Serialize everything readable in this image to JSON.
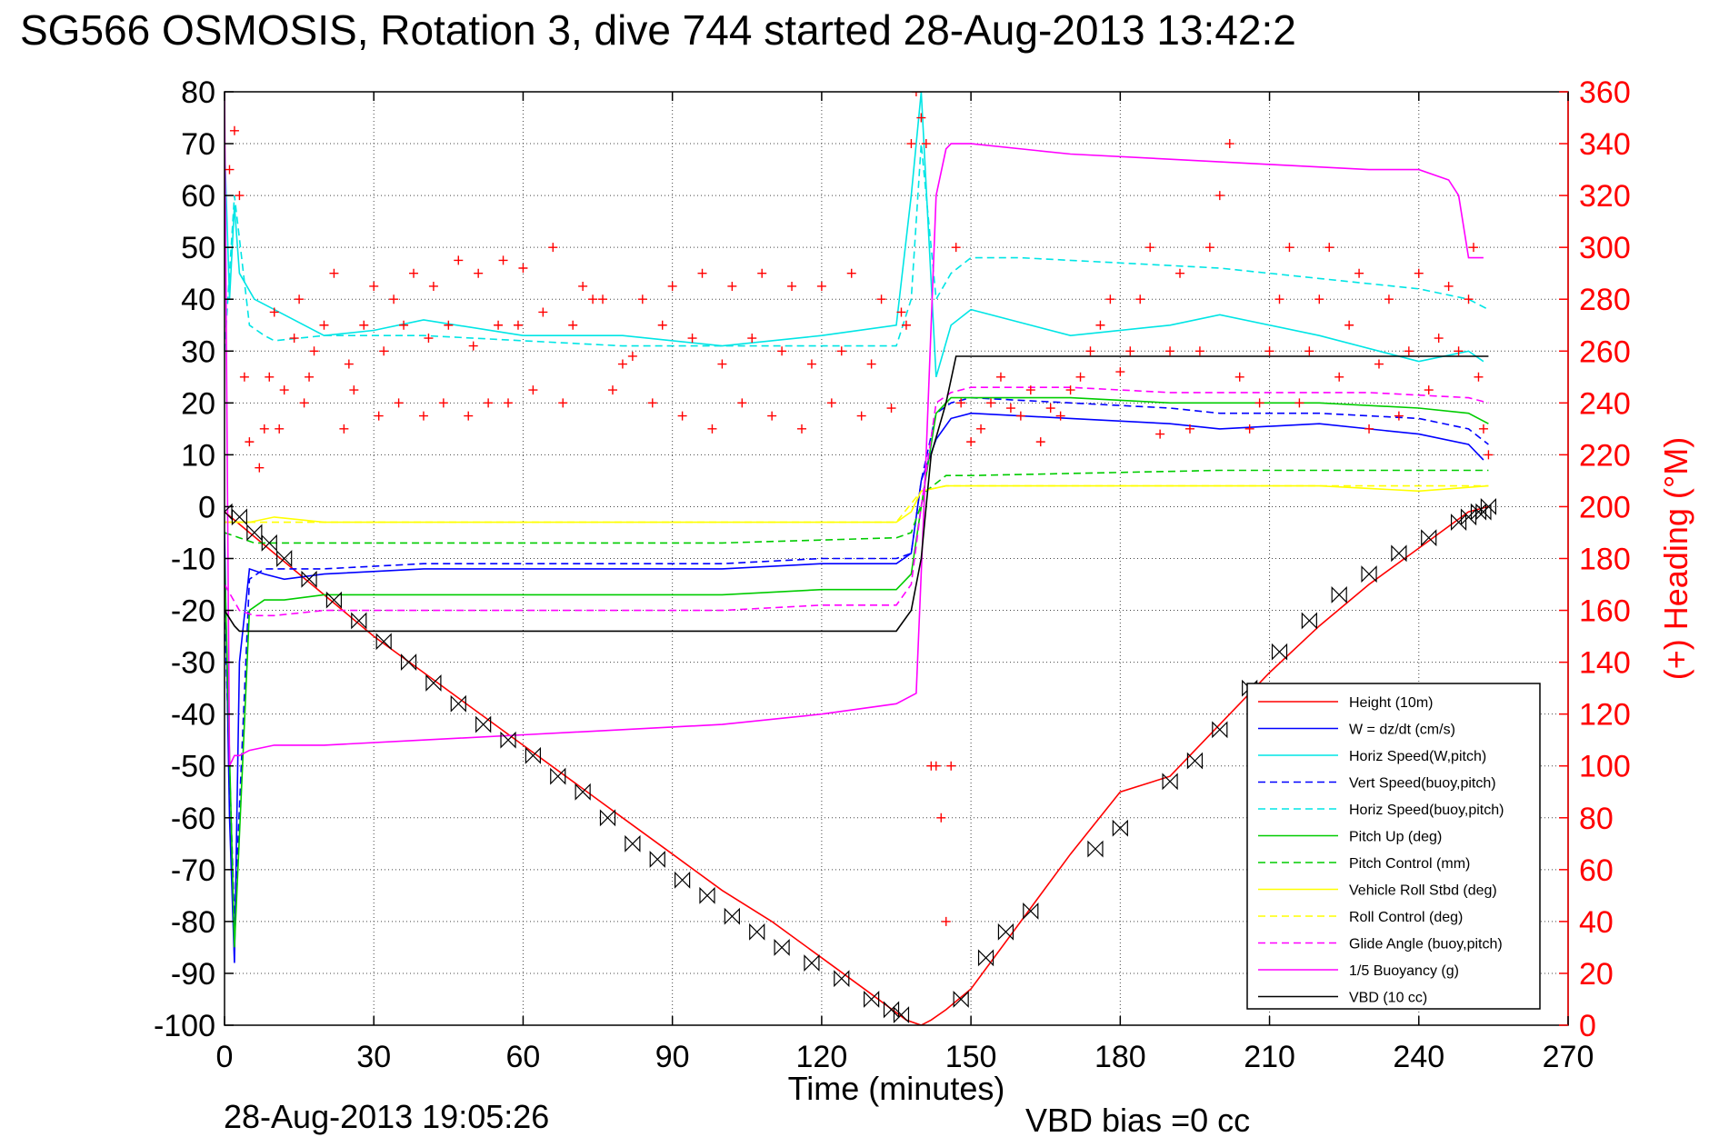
{
  "chart_data": {
    "type": "line",
    "title": "SG566 OSMOSIS, Rotation 3, dive 744 started 28-Aug-2013 13:42:2",
    "xlabel": "Time (minutes)",
    "ylabel": "",
    "y2label": "(+) Heading (°M)",
    "xlim": [
      0,
      270
    ],
    "ylim": [
      -100,
      80
    ],
    "y2lim": [
      0,
      360
    ],
    "xticks": [
      "0",
      "30",
      "60",
      "90",
      "120",
      "150",
      "180",
      "210",
      "240",
      "270"
    ],
    "yticks": [
      "80",
      "70",
      "60",
      "50",
      "40",
      "30",
      "20",
      "10",
      "0",
      "-10",
      "-20",
      "-30",
      "-40",
      "-50",
      "-60",
      "-70",
      "-80",
      "-90",
      "-100"
    ],
    "y2ticks": [
      "360",
      "340",
      "320",
      "300",
      "280",
      "260",
      "240",
      "220",
      "200",
      "180",
      "160",
      "140",
      "120",
      "100",
      "80",
      "60",
      "40",
      "20",
      "0"
    ],
    "grid": true,
    "legend_position": "bottom-right",
    "series": [
      {
        "name": "Height (10m)",
        "color": "#ff0000",
        "style": "solid",
        "x": [
          0,
          10,
          20,
          30,
          40,
          50,
          60,
          70,
          80,
          90,
          100,
          110,
          120,
          130,
          137,
          140,
          142,
          145,
          150,
          160,
          170,
          180,
          190,
          200,
          210,
          220,
          230,
          240,
          250,
          254
        ],
        "y": [
          -1,
          -9,
          -17,
          -25,
          -32,
          -39,
          -46,
          -53,
          -60,
          -67,
          -74,
          -80,
          -87,
          -94,
          -99,
          -100,
          -99,
          -97,
          -93,
          -80,
          -67,
          -55,
          -52,
          -42,
          -32,
          -23,
          -15,
          -8,
          -1,
          0
        ]
      },
      {
        "name": "W = dz/dt (cm/s)",
        "color": "#0000ff",
        "style": "solid",
        "x": [
          0,
          1,
          2,
          3,
          5,
          8,
          12,
          20,
          40,
          60,
          80,
          100,
          120,
          135,
          138,
          140,
          143,
          146,
          150,
          170,
          190,
          200,
          220,
          240,
          250,
          253
        ],
        "y": [
          -5,
          -60,
          -88,
          -30,
          -12,
          -13,
          -14,
          -13,
          -12,
          -12,
          -12,
          -12,
          -11,
          -11,
          -9,
          5,
          13,
          17,
          18,
          17,
          16,
          15,
          16,
          14,
          12,
          9
        ]
      },
      {
        "name": "Horiz Speed(W,pitch)",
        "color": "#00e5e5",
        "style": "solid",
        "x": [
          0,
          1,
          2,
          3,
          6,
          10,
          20,
          30,
          40,
          60,
          80,
          100,
          120,
          135,
          138,
          140,
          143,
          146,
          150,
          170,
          190,
          200,
          220,
          240,
          250,
          253
        ],
        "y": [
          70,
          40,
          58,
          45,
          40,
          38,
          33,
          34,
          36,
          33,
          33,
          31,
          33,
          35,
          60,
          80,
          25,
          35,
          38,
          33,
          35,
          37,
          33,
          28,
          30,
          28
        ]
      },
      {
        "name": "Vert Speed(buoy,pitch)",
        "color": "#0000ff",
        "style": "dashed",
        "x": [
          0,
          2,
          5,
          8,
          10,
          20,
          40,
          60,
          80,
          100,
          120,
          135,
          138,
          140,
          143,
          146,
          150,
          170,
          190,
          200,
          220,
          240,
          250,
          254
        ],
        "y": [
          -20,
          -80,
          -14,
          -12,
          -12,
          -12,
          -11,
          -11,
          -11,
          -11,
          -10,
          -10,
          -9,
          5,
          18,
          20,
          21,
          20,
          19,
          18,
          18,
          17,
          15,
          12
        ]
      },
      {
        "name": "Horiz Speed(buoy,pitch)",
        "color": "#00e5e5",
        "style": "dashed",
        "x": [
          0,
          2,
          5,
          8,
          10,
          20,
          40,
          60,
          80,
          100,
          120,
          135,
          138,
          140,
          143,
          146,
          150,
          160,
          180,
          200,
          220,
          240,
          250,
          254
        ],
        "y": [
          30,
          60,
          35,
          33,
          32,
          33,
          33,
          32,
          31,
          31,
          31,
          31,
          40,
          70,
          40,
          45,
          48,
          48,
          47,
          46,
          44,
          42,
          40,
          38
        ]
      },
      {
        "name": "Pitch Up (deg)",
        "color": "#00cc00",
        "style": "solid",
        "x": [
          0,
          2,
          5,
          8,
          12,
          20,
          40,
          60,
          80,
          100,
          120,
          135,
          138,
          140,
          143,
          146,
          150,
          170,
          190,
          200,
          220,
          240,
          250,
          254
        ],
        "y": [
          -10,
          -85,
          -20,
          -18,
          -18,
          -17,
          -17,
          -17,
          -17,
          -17,
          -16,
          -16,
          -13,
          0,
          18,
          21,
          21,
          21,
          20,
          20,
          20,
          19,
          18,
          16
        ]
      },
      {
        "name": "Pitch Control (mm)",
        "color": "#00cc00",
        "style": "dashed",
        "x": [
          0,
          3,
          6,
          10,
          20,
          60,
          100,
          135,
          138,
          141,
          145,
          150,
          200,
          254
        ],
        "y": [
          -5,
          -6,
          -7,
          -7,
          -7,
          -7,
          -7,
          -6,
          -5,
          3,
          6,
          6,
          7,
          7
        ]
      },
      {
        "name": "Vehicle Roll Stbd (deg)",
        "color": "#ffff00",
        "style": "solid",
        "x": [
          0,
          5,
          10,
          20,
          40,
          60,
          80,
          100,
          120,
          135,
          138,
          140,
          145,
          150,
          180,
          200,
          220,
          240,
          254
        ],
        "y": [
          -3,
          -3,
          -2,
          -3,
          -3,
          -3,
          -3,
          -3,
          -3,
          -3,
          -1,
          3,
          4,
          4,
          4,
          4,
          4,
          3,
          4
        ]
      },
      {
        "name": "Roll Control (deg)",
        "color": "#ffff00",
        "style": "dashed",
        "x": [
          0,
          10,
          40,
          80,
          120,
          135,
          140,
          145,
          180,
          220,
          254
        ],
        "y": [
          -3,
          -3,
          -3,
          -3,
          -3,
          -3,
          3,
          4,
          4,
          4,
          4
        ]
      },
      {
        "name": "Glide Angle (buoy,pitch)",
        "color": "#ff00ff",
        "style": "dashed",
        "x": [
          0,
          3,
          6,
          10,
          20,
          40,
          60,
          80,
          100,
          120,
          135,
          138,
          140,
          143,
          146,
          150,
          170,
          190,
          210,
          230,
          250,
          254
        ],
        "y": [
          -15,
          -20,
          -21,
          -21,
          -20,
          -20,
          -20,
          -20,
          -20,
          -19,
          -19,
          -15,
          0,
          20,
          22,
          23,
          23,
          22,
          22,
          22,
          21,
          20
        ]
      },
      {
        "name": "1/5 Buoyancy (g)",
        "color": "#ff00ff",
        "style": "solid",
        "x": [
          0,
          1,
          2,
          3,
          5,
          10,
          20,
          40,
          60,
          80,
          100,
          120,
          135,
          139,
          141,
          143,
          145,
          146,
          148,
          150,
          170,
          190,
          210,
          230,
          240,
          246,
          248,
          250,
          253
        ],
        "y": [
          80,
          -50,
          -48,
          -48,
          -47,
          -46,
          -46,
          -45,
          -44,
          -43,
          -42,
          -40,
          -38,
          -36,
          10,
          60,
          69,
          70,
          70,
          70,
          68,
          67,
          66,
          65,
          65,
          63,
          60,
          48,
          48
        ]
      },
      {
        "name": "VBD (10 cc)",
        "color": "#000000",
        "style": "solid",
        "x": [
          0,
          2,
          3,
          135,
          138,
          140,
          141,
          142,
          145,
          147,
          254
        ],
        "y": [
          -20,
          -23,
          -24,
          -24,
          -20,
          -10,
          0,
          10,
          20,
          29,
          29
        ]
      }
    ],
    "heading_samples": {
      "name": "(+) Heading (°M)",
      "color": "#ff0000",
      "marker": "+",
      "x": [
        1,
        2,
        3,
        4,
        5,
        7,
        8,
        9,
        10,
        11,
        12,
        14,
        15,
        16,
        17,
        18,
        20,
        22,
        24,
        25,
        26,
        28,
        30,
        31,
        32,
        34,
        35,
        36,
        38,
        40,
        41,
        42,
        44,
        45,
        47,
        49,
        50,
        51,
        53,
        55,
        56,
        57,
        59,
        60,
        62,
        64,
        66,
        68,
        70,
        72,
        74,
        76,
        78,
        80,
        82,
        84,
        86,
        88,
        90,
        92,
        94,
        96,
        98,
        100,
        102,
        104,
        106,
        108,
        110,
        112,
        114,
        116,
        118,
        120,
        122,
        124,
        126,
        128,
        130,
        132,
        134,
        136,
        137,
        138,
        139,
        140,
        141,
        142,
        143,
        144,
        145,
        146,
        147,
        148,
        150,
        152,
        154,
        156,
        158,
        160,
        162,
        164,
        166,
        168,
        170,
        172,
        174,
        176,
        178,
        180,
        182,
        184,
        186,
        188,
        190,
        192,
        194,
        196,
        198,
        200,
        202,
        204,
        206,
        208,
        210,
        212,
        214,
        216,
        218,
        220,
        222,
        224,
        226,
        228,
        230,
        232,
        234,
        236,
        238,
        240,
        242,
        244,
        246,
        248,
        250,
        251,
        252,
        253,
        254
      ],
      "y": [
        330,
        345,
        320,
        250,
        225,
        215,
        230,
        250,
        275,
        230,
        245,
        265,
        280,
        240,
        250,
        260,
        270,
        290,
        230,
        255,
        245,
        270,
        285,
        235,
        260,
        280,
        240,
        270,
        290,
        235,
        265,
        285,
        240,
        270,
        295,
        235,
        262,
        290,
        240,
        270,
        295,
        240,
        270,
        292,
        245,
        275,
        300,
        240,
        270,
        285,
        280,
        280,
        245,
        255,
        258,
        280,
        240,
        270,
        285,
        235,
        265,
        290,
        230,
        255,
        285,
        240,
        265,
        290,
        235,
        260,
        285,
        230,
        255,
        285,
        240,
        260,
        290,
        235,
        255,
        280,
        238,
        275,
        270,
        340,
        360,
        350,
        340,
        100,
        100,
        80,
        40,
        100,
        300,
        240,
        225,
        230,
        240,
        250,
        238,
        235,
        245,
        225,
        238,
        235,
        245,
        250,
        260,
        270,
        280,
        252,
        260,
        280,
        300,
        228,
        260,
        290,
        230,
        260,
        300,
        320,
        340,
        250,
        230,
        240,
        260,
        280,
        300,
        240,
        260,
        280,
        300,
        250,
        270,
        290,
        230,
        255,
        280,
        235,
        260,
        290,
        245,
        265,
        285,
        260,
        280,
        300,
        250,
        230,
        220
      ]
    },
    "vbd_markers": {
      "marker": "bowtie",
      "x": [
        0,
        3,
        6,
        9,
        12,
        17,
        22,
        27,
        32,
        37,
        42,
        47,
        52,
        57,
        62,
        67,
        72,
        77,
        82,
        87,
        92,
        97,
        102,
        107,
        112,
        118,
        124,
        130,
        134,
        136,
        148,
        153,
        157,
        162,
        175,
        180,
        190,
        195,
        200,
        206,
        212,
        218,
        224,
        230,
        236,
        242,
        248,
        250,
        252,
        253,
        254
      ],
      "y": [
        -1,
        -2,
        -5,
        -7,
        -10,
        -14,
        -18,
        -22,
        -26,
        -30,
        -34,
        -38,
        -42,
        -45,
        -48,
        -52,
        -55,
        -60,
        -65,
        -68,
        -72,
        -75,
        -79,
        -82,
        -85,
        -88,
        -91,
        -95,
        -97,
        -98,
        -95,
        -87,
        -82,
        -78,
        -66,
        -62,
        -53,
        -49,
        -43,
        -35,
        -28,
        -22,
        -17,
        -13,
        -9,
        -6,
        -3,
        -2,
        -1,
        -1,
        0
      ]
    }
  },
  "footer": {
    "timestamp": "28-Aug-2013 19:05:26",
    "vbd_bias": "VBD bias =0 cc"
  }
}
